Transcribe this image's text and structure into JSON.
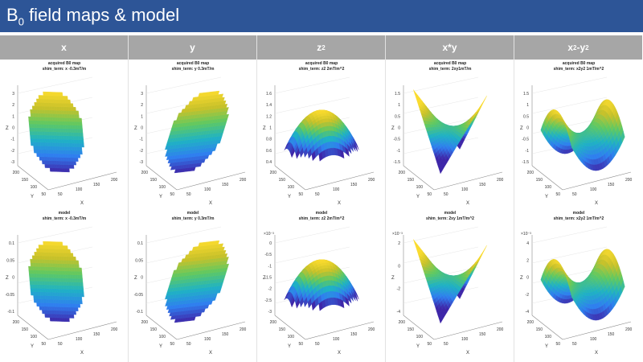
{
  "banner": {
    "title_b": "B",
    "title_sub": "0",
    "title_rest": " field maps & model"
  },
  "columns": [
    {
      "label_base": "x",
      "label_sup": "",
      "label_mid": "",
      "label_sup2": ""
    },
    {
      "label_base": "y",
      "label_sup": "",
      "label_mid": "",
      "label_sup2": ""
    },
    {
      "label_base": "z",
      "label_sup": "2",
      "label_mid": "",
      "label_sup2": ""
    },
    {
      "label_base": "x*y",
      "label_sup": "",
      "label_mid": "",
      "label_sup2": ""
    },
    {
      "label_base": "x",
      "label_sup": "2",
      "label_mid": "-y",
      "label_sup2": "2"
    }
  ],
  "plots": {
    "acquired": [
      {
        "title1": "acquired B0 map",
        "title2": "shim_term: x  -0.3mT/m",
        "zticks": [
          "3",
          "2",
          "1",
          "0",
          "-1",
          "-2",
          "-3"
        ],
        "exp": ""
      },
      {
        "title1": "acquired B0 map",
        "title2": "shim_term: y  0.3mT/m",
        "zticks": [
          "3",
          "2",
          "1",
          "0",
          "-1",
          "-2",
          "-3"
        ],
        "exp": ""
      },
      {
        "title1": "acquired B0 map",
        "title2": "shim_term: z2  2mT/m^2",
        "zticks": [
          "1.6",
          "1.4",
          "1.2",
          "1",
          "0.8",
          "0.6",
          "0.4"
        ],
        "exp": ""
      },
      {
        "title1": "acquired B0 map",
        "title2": "shim_term: 2xy1mT/m",
        "zticks": [
          "1.5",
          "1",
          "0.5",
          "0",
          "-0.5",
          "-1",
          "-1.5"
        ],
        "exp": ""
      },
      {
        "title1": "acquired B0 map",
        "title2": "shim_term: x2y2  1mT/m^2",
        "zticks": [
          "1.5",
          "1",
          "0.5",
          "0",
          "-0.5",
          "-1",
          "-1.5"
        ],
        "exp": ""
      }
    ],
    "model": [
      {
        "title1": "model",
        "title2": "shim_term: x  -0.3mT/m",
        "zticks": [
          "0.1",
          "0.05",
          "0",
          "-0.05",
          "-0.1"
        ],
        "exp": ""
      },
      {
        "title1": "model",
        "title2": "shim_term: y  0.3mT/m",
        "zticks": [
          "0.1",
          "0.05",
          "0",
          "-0.05",
          "-0.1"
        ],
        "exp": ""
      },
      {
        "title1": "model",
        "title2": "shim_term: z2  2mT/m^2",
        "zticks": [
          "0",
          "-0.5",
          "-1",
          "-1.5",
          "-2",
          "-2.5",
          "-3"
        ],
        "exp": "×10⁻³"
      },
      {
        "title1": "model",
        "title2": "shim_term: 2xy  1mT/m^2",
        "zticks": [
          "2",
          "0",
          "-2",
          "-4"
        ],
        "exp": "×10⁻³"
      },
      {
        "title1": "model",
        "title2": "shim_term: x2y2  1mT/m^2",
        "zticks": [
          "4",
          "2",
          "0",
          "-2",
          "-4"
        ],
        "exp": "×10⁻³"
      }
    ]
  },
  "axes": {
    "z_label": "Z",
    "y_label": "Y",
    "x_label": "X",
    "y_ticks": [
      "200",
      "150",
      "100",
      "50"
    ],
    "x_ticks": [
      "50",
      "100",
      "150",
      "200"
    ]
  },
  "colors": {
    "banner": "#2d5597",
    "header": "#a6a6a6",
    "colormap": [
      "#3e26a8",
      "#2f7ef0",
      "#1fb2c4",
      "#5ec962",
      "#c8c129",
      "#fadb2e"
    ]
  }
}
